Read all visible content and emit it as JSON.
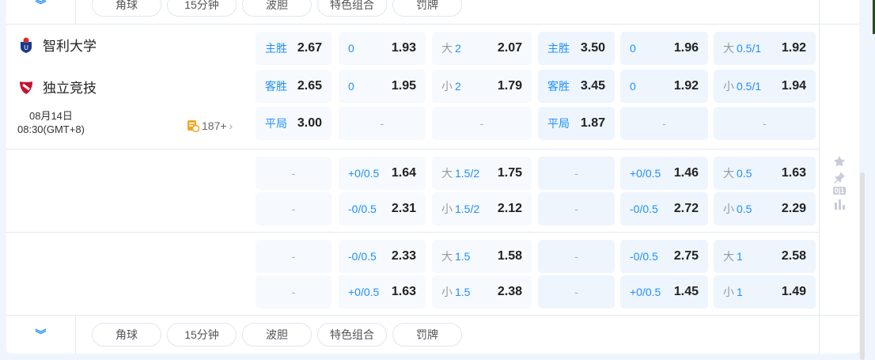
{
  "tabs": [
    "角球",
    "15分钟",
    "波胆",
    "特色组合",
    "罚牌"
  ],
  "match": {
    "home": {
      "name": "智利大学",
      "logo": "universidad-de-chile-crest"
    },
    "away": {
      "name": "独立竞技",
      "logo": "independiente-crest"
    },
    "date": "08月14日",
    "time": "08:30(GMT+8)",
    "more_count": "187+"
  },
  "sections": [
    [
      [
        {
          "pre": "",
          "lbl": "主胜",
          "odds": "2.67"
        },
        {
          "pre": "",
          "lbl": "0",
          "odds": "1.93"
        },
        {
          "pre": "大",
          "lbl": "2",
          "odds": "2.07"
        },
        {
          "pre": "",
          "lbl": "主胜",
          "odds": "3.50"
        },
        {
          "pre": "",
          "lbl": "0",
          "odds": "1.96"
        },
        {
          "pre": "大",
          "lbl": "0.5/1",
          "odds": "1.92"
        }
      ],
      [
        {
          "pre": "",
          "lbl": "客胜",
          "odds": "2.65"
        },
        {
          "pre": "",
          "lbl": "0",
          "odds": "1.95"
        },
        {
          "pre": "小",
          "lbl": "2",
          "odds": "1.79"
        },
        {
          "pre": "",
          "lbl": "客胜",
          "odds": "3.45"
        },
        {
          "pre": "",
          "lbl": "0",
          "odds": "1.92"
        },
        {
          "pre": "小",
          "lbl": "0.5/1",
          "odds": "1.94"
        }
      ],
      [
        {
          "pre": "",
          "lbl": "平局",
          "odds": "3.00"
        },
        {
          "dash": "-"
        },
        {
          "dash": "-"
        },
        {
          "pre": "",
          "lbl": "平局",
          "odds": "1.87"
        },
        {
          "dash": "-"
        },
        {
          "dash": "-"
        }
      ]
    ],
    [
      [
        {
          "dash": "-"
        },
        {
          "pre": "",
          "lbl": "+0/0.5",
          "odds": "1.64"
        },
        {
          "pre": "大",
          "lbl": "1.5/2",
          "odds": "1.75"
        },
        {
          "dash": "-"
        },
        {
          "pre": "",
          "lbl": "+0/0.5",
          "odds": "1.46"
        },
        {
          "pre": "大",
          "lbl": "0.5",
          "odds": "1.63"
        }
      ],
      [
        {
          "dash": "-"
        },
        {
          "pre": "",
          "lbl": "-0/0.5",
          "odds": "2.31"
        },
        {
          "pre": "小",
          "lbl": "1.5/2",
          "odds": "2.12"
        },
        {
          "dash": "-"
        },
        {
          "pre": "",
          "lbl": "-0/0.5",
          "odds": "2.72"
        },
        {
          "pre": "小",
          "lbl": "0.5",
          "odds": "2.29"
        }
      ]
    ],
    [
      [
        {
          "dash": "-"
        },
        {
          "pre": "",
          "lbl": "-0/0.5",
          "odds": "2.33"
        },
        {
          "pre": "大",
          "lbl": "1.5",
          "odds": "1.58"
        },
        {
          "dash": "-"
        },
        {
          "pre": "",
          "lbl": "-0/0.5",
          "odds": "2.75"
        },
        {
          "pre": "大",
          "lbl": "1",
          "odds": "2.58"
        }
      ],
      [
        {
          "dash": "-"
        },
        {
          "pre": "",
          "lbl": "+0/0.5",
          "odds": "1.63"
        },
        {
          "pre": "小",
          "lbl": "1.5",
          "odds": "2.38"
        },
        {
          "dash": "-"
        },
        {
          "pre": "",
          "lbl": "+0/0.5",
          "odds": "1.45"
        },
        {
          "pre": "小",
          "lbl": "1",
          "odds": "1.49"
        }
      ]
    ]
  ],
  "side_icons": [
    "star-icon",
    "pin-icon",
    "score-icon",
    "stats-icon"
  ],
  "score_icon_text": "0|1",
  "colors": {
    "accent": "#1e90ff",
    "cell_light": "#f6f9fd",
    "cell_blue": "#eef5fd",
    "page_bg": "#eef5fd"
  }
}
